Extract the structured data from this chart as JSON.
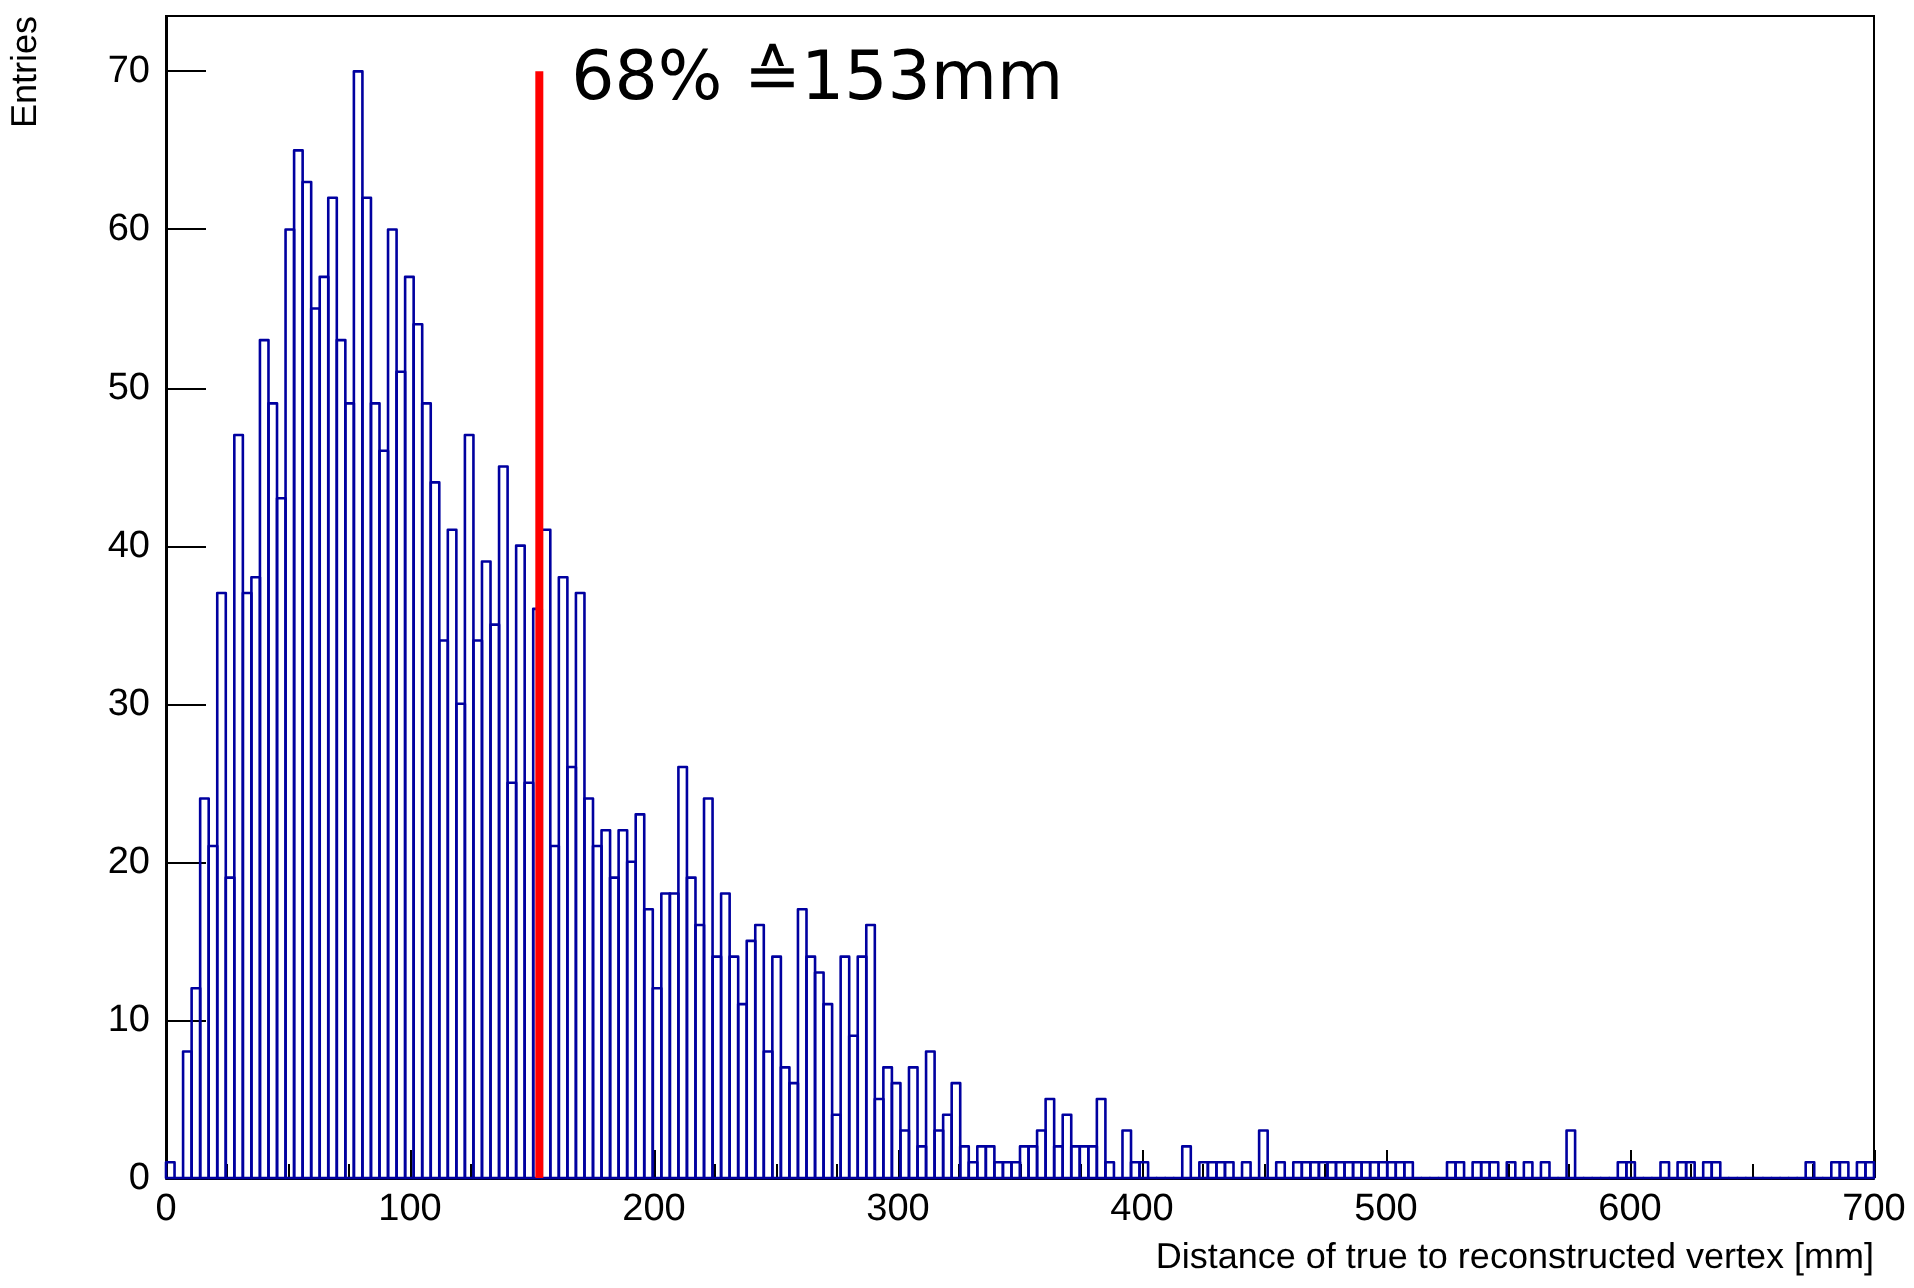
{
  "chart_data": {
    "type": "histogram",
    "xlabel": "Distance of true to reconstructed vertex [mm]",
    "ylabel": "Entries",
    "bins": [
      0,
      3.5,
      7,
      10.5,
      14,
      17.5,
      21,
      24.5,
      28,
      31.5,
      35,
      38.5,
      42,
      45.5,
      49,
      52.5,
      56,
      59.5,
      63,
      66.5,
      70,
      73.5,
      77,
      80.5,
      84,
      87.5,
      91,
      94.5,
      98,
      101.5,
      105,
      108.5,
      112,
      115.5,
      119,
      122.5,
      126,
      129.5,
      133,
      136.5,
      140,
      143.5,
      147,
      150.5,
      154,
      157.5,
      161,
      164.5,
      168,
      171.5,
      175,
      178.5,
      182,
      185.5,
      189,
      192.5,
      196,
      199.5,
      203,
      206.5,
      210,
      213.5,
      217,
      220.5,
      224,
      227.5,
      231,
      234.5,
      238,
      241.5,
      245,
      248.5,
      252,
      255.5,
      259,
      262.5,
      266,
      269.5,
      273,
      276.5,
      280,
      283.5,
      287,
      290.5,
      294,
      297.5,
      301,
      304.5,
      308,
      311.5,
      315,
      318.5,
      322,
      325.5,
      329,
      332.5,
      336,
      339.5,
      343,
      346.5,
      350,
      353.5,
      357,
      360.5,
      364,
      367.5,
      371,
      374.5,
      378,
      381.5,
      385,
      388.5,
      392,
      395.5,
      399,
      402.5,
      406,
      409.5,
      413,
      416.5,
      420,
      423.5,
      427,
      430.5,
      434,
      437.5,
      441,
      444.5,
      448,
      451.5,
      455,
      458.5,
      462,
      465.5,
      469,
      472.5,
      476,
      479.5,
      483,
      486.5,
      490,
      493.5,
      497,
      500.5,
      504,
      507.5,
      511,
      514.5,
      518,
      521.5,
      525,
      528.5,
      532,
      535.5,
      539,
      542.5,
      546,
      549.5,
      553,
      556.5,
      560,
      563.5,
      567,
      570.5,
      574,
      577.5,
      581,
      584.5,
      588,
      591.5,
      595,
      598.5,
      602,
      605.5,
      609,
      612.5,
      616,
      619.5,
      623,
      626.5,
      630,
      633.5,
      637,
      640.5,
      644,
      647.5,
      651,
      654.5,
      658,
      661.5,
      665,
      668.5,
      672,
      675.5,
      679,
      682.5,
      686,
      689.5,
      693,
      696.5,
      700
    ],
    "values": [
      1,
      0,
      8,
      12,
      24,
      21,
      37,
      19,
      47,
      37,
      38,
      53,
      49,
      43,
      60,
      65,
      63,
      55,
      57,
      62,
      53,
      49,
      70,
      62,
      49,
      46,
      60,
      51,
      57,
      54,
      49,
      44,
      34,
      41,
      30,
      47,
      34,
      39,
      35,
      45,
      25,
      40,
      25,
      36,
      41,
      21,
      38,
      26,
      37,
      24,
      21,
      22,
      19,
      22,
      20,
      23,
      17,
      12,
      18,
      18,
      26,
      19,
      16,
      24,
      14,
      18,
      14,
      11,
      15,
      16,
      8,
      14,
      7,
      6,
      17,
      14,
      13,
      11,
      4,
      14,
      9,
      14,
      16,
      5,
      7,
      6,
      3,
      7,
      2,
      8,
      3,
      4,
      6,
      2,
      1,
      2,
      2,
      1,
      1,
      1,
      2,
      2,
      3,
      5,
      2,
      4,
      2,
      2,
      2,
      5,
      1,
      0,
      3,
      1,
      1,
      0,
      0,
      0,
      0,
      2,
      0,
      1,
      1,
      1,
      1,
      0,
      1,
      0,
      3,
      0,
      1,
      0,
      1,
      1,
      1,
      1,
      1,
      1,
      1,
      1,
      1,
      1,
      1,
      1,
      1,
      1,
      0,
      0,
      0,
      0,
      1,
      1,
      0,
      1,
      1,
      1,
      0,
      1,
      0,
      1,
      0,
      1,
      0,
      0,
      3,
      0,
      0,
      0,
      0,
      0,
      1,
      1,
      0,
      0,
      0,
      1,
      0,
      1,
      1,
      0,
      1,
      1,
      0,
      0,
      0,
      0,
      0,
      0,
      0,
      0,
      0,
      0,
      1,
      0,
      0,
      1,
      1,
      0,
      1,
      1
    ],
    "color": "#0000a0",
    "xlim": [
      0,
      700
    ],
    "xticks": [
      0,
      100,
      200,
      300,
      400,
      500,
      600,
      700
    ],
    "ylim": [
      0,
      73.5
    ],
    "yticks": [
      0,
      10,
      20,
      30,
      40,
      50,
      60,
      70
    ],
    "ref_lines": [
      {
        "axis": "x",
        "value": 153,
        "label": "68% ≙153mm",
        "color": "#ff0000"
      }
    ],
    "grid": false
  }
}
